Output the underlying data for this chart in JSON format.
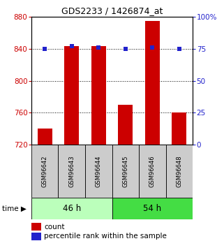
{
  "title": "GDS2233 / 1426874_at",
  "categories": [
    "GSM96642",
    "GSM96643",
    "GSM96644",
    "GSM96645",
    "GSM96646",
    "GSM96648"
  ],
  "count_values": [
    740,
    843,
    843,
    770,
    875,
    760
  ],
  "percentile_values": [
    75,
    77,
    76,
    75,
    76,
    75
  ],
  "group1_label": "46 h",
  "group2_label": "54 h",
  "group1_indices": [
    0,
    1,
    2
  ],
  "group2_indices": [
    3,
    4,
    5
  ],
  "ylim_left": [
    720,
    880
  ],
  "ylim_right": [
    0,
    100
  ],
  "yticks_left": [
    720,
    760,
    800,
    840,
    880
  ],
  "yticks_right": [
    0,
    25,
    50,
    75,
    100
  ],
  "ytick_right_labels": [
    "0",
    "25",
    "50",
    "75",
    "100%"
  ],
  "bar_color": "#cc0000",
  "dot_color": "#2222cc",
  "group1_color": "#bbffbb",
  "group2_color": "#44dd44",
  "gray_box_color": "#cccccc",
  "legend_count_label": "count",
  "legend_pct_label": "percentile rank within the sample",
  "left_tick_color": "#cc0000",
  "right_tick_color": "#2222cc",
  "bar_baseline": 720,
  "bar_width": 0.55
}
